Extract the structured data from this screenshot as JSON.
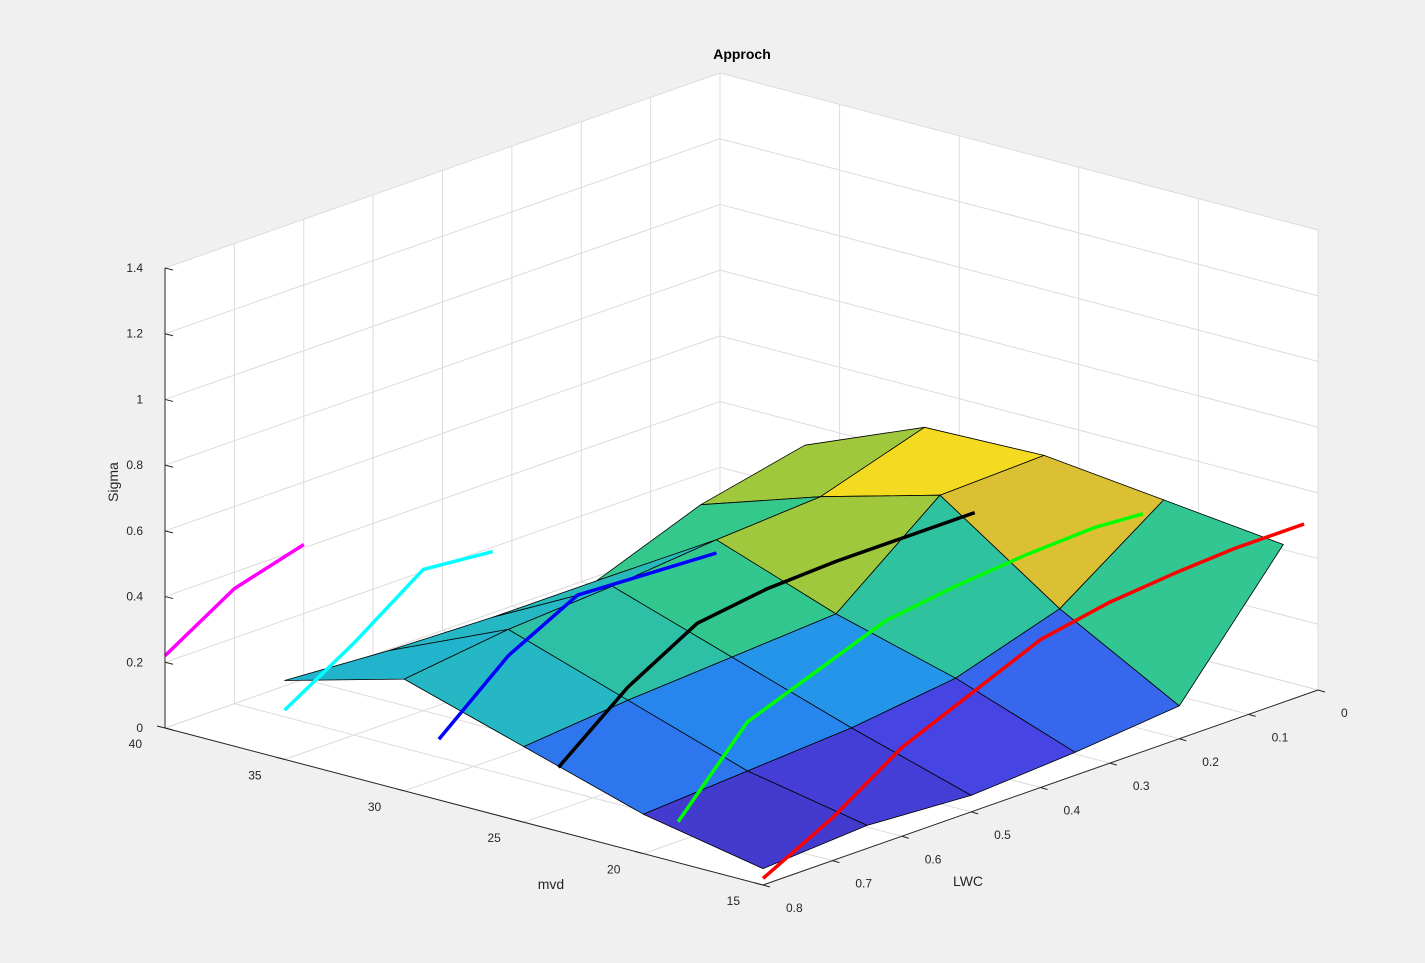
{
  "chart_data": {
    "type": "surface",
    "title": "Approch",
    "xlabel": "LWC",
    "ylabel": "mvd",
    "zlabel": "Sigma",
    "xlim": [
      0,
      0.8
    ],
    "ylim": [
      15,
      40
    ],
    "zlim": [
      0,
      1.4
    ],
    "xticks": [
      "0",
      "0.1",
      "0.2",
      "0.3",
      "0.4",
      "0.5",
      "0.6",
      "0.7",
      "0.8"
    ],
    "yticks": [
      "15",
      "20",
      "25",
      "30",
      "35",
      "40"
    ],
    "zticks": [
      "0",
      "0.2",
      "0.4",
      "0.6",
      "0.8",
      "1",
      "1.2",
      "1.4"
    ],
    "grid": true,
    "colormap": "parula",
    "surface": {
      "lwc": [
        0.05,
        0.2,
        0.35,
        0.5,
        0.65,
        0.8
      ],
      "mvd": [
        15,
        20,
        25,
        30,
        35
      ],
      "sigma": [
        [
          0.48,
          0.52,
          0.56,
          0.55,
          0.4
        ],
        [
          0.1,
          0.3,
          0.55,
          0.45,
          0.33
        ],
        [
          0.07,
          0.2,
          0.3,
          0.43,
          0.21
        ],
        [
          0.05,
          0.16,
          0.28,
          0.4,
          0.21
        ],
        [
          0.07,
          0.14,
          0.26,
          0.38,
          0.22
        ],
        [
          0.05,
          0.12,
          0.23,
          0.34,
          0.24
        ]
      ]
    },
    "series": [
      {
        "color": "#ff0000",
        "mvd": 15,
        "lwc": [
          0.02,
          0.12,
          0.2,
          0.3,
          0.4,
          0.5,
          0.6,
          0.7,
          0.8
        ],
        "sigma": [
          0.52,
          0.52,
          0.51,
          0.49,
          0.45,
          0.36,
          0.27,
          0.13,
          0.02
        ]
      },
      {
        "color": "#00ff00",
        "mvd": 20,
        "lwc": [
          0.08,
          0.15,
          0.25,
          0.35,
          0.45,
          0.55,
          0.65,
          0.75
        ],
        "sigma": [
          0.5,
          0.51,
          0.5,
          0.48,
          0.45,
          0.37,
          0.29,
          0.06
        ]
      },
      {
        "color": "#000000",
        "mvd": 25,
        "lwc": [
          0.15,
          0.25,
          0.35,
          0.45,
          0.55,
          0.65,
          0.75
        ],
        "sigma": [
          0.46,
          0.46,
          0.46,
          0.45,
          0.42,
          0.3,
          0.13
        ]
      },
      {
        "color": "#0000ff",
        "mvd": 30,
        "lwc": [
          0.35,
          0.45,
          0.55,
          0.65,
          0.75
        ],
        "sigma": [
          0.39,
          0.4,
          0.41,
          0.3,
          0.12
        ]
      },
      {
        "color": "#00ffff",
        "mvd": 35,
        "lwc": [
          0.5,
          0.6,
          0.7,
          0.8
        ],
        "sigma": [
          0.41,
          0.43,
          0.28,
          0.15
        ]
      },
      {
        "color": "#ff00ff",
        "mvd": 40,
        "lwc": [
          0.6,
          0.7,
          0.8
        ],
        "sigma": [
          0.41,
          0.35,
          0.22
        ]
      }
    ]
  }
}
